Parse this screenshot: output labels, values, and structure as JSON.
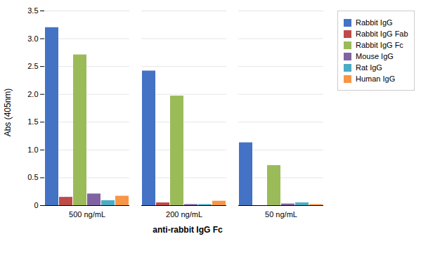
{
  "chart_data": {
    "type": "bar",
    "xlabel": "anti-rabbit IgG Fc",
    "ylabel": "Abs (405nm)",
    "categories": [
      "500 ng/mL",
      "200 ng/mL",
      "50 ng/mL"
    ],
    "series": [
      {
        "name": "Rabbit IgG",
        "color": "#4472C4",
        "values": [
          3.2,
          2.42,
          1.13
        ]
      },
      {
        "name": "Rabbit IgG Fab",
        "color": "#BE4B48",
        "values": [
          0.15,
          0.05,
          0.0
        ]
      },
      {
        "name": "Rabbit IgG Fc",
        "color": "#9BBB59",
        "values": [
          2.71,
          1.97,
          0.72
        ]
      },
      {
        "name": "Mouse IgG",
        "color": "#8064A2",
        "values": [
          0.21,
          0.02,
          0.03
        ]
      },
      {
        "name": "Rat IgG",
        "color": "#4BACC6",
        "values": [
          0.09,
          0.02,
          0.05
        ]
      },
      {
        "name": "Human IgG",
        "color": "#F79646",
        "values": [
          0.17,
          0.08,
          0.02
        ]
      }
    ],
    "ylim": [
      0,
      3.5
    ],
    "yticks": [
      0,
      0.5,
      {
        "value": 1,
        "label": "1.0"
      },
      1.5,
      {
        "value": 2,
        "label": "2.0"
      },
      2.5,
      {
        "value": 3,
        "label": "3.0"
      },
      3.5
    ],
    "grid": true,
    "legend": "right"
  }
}
